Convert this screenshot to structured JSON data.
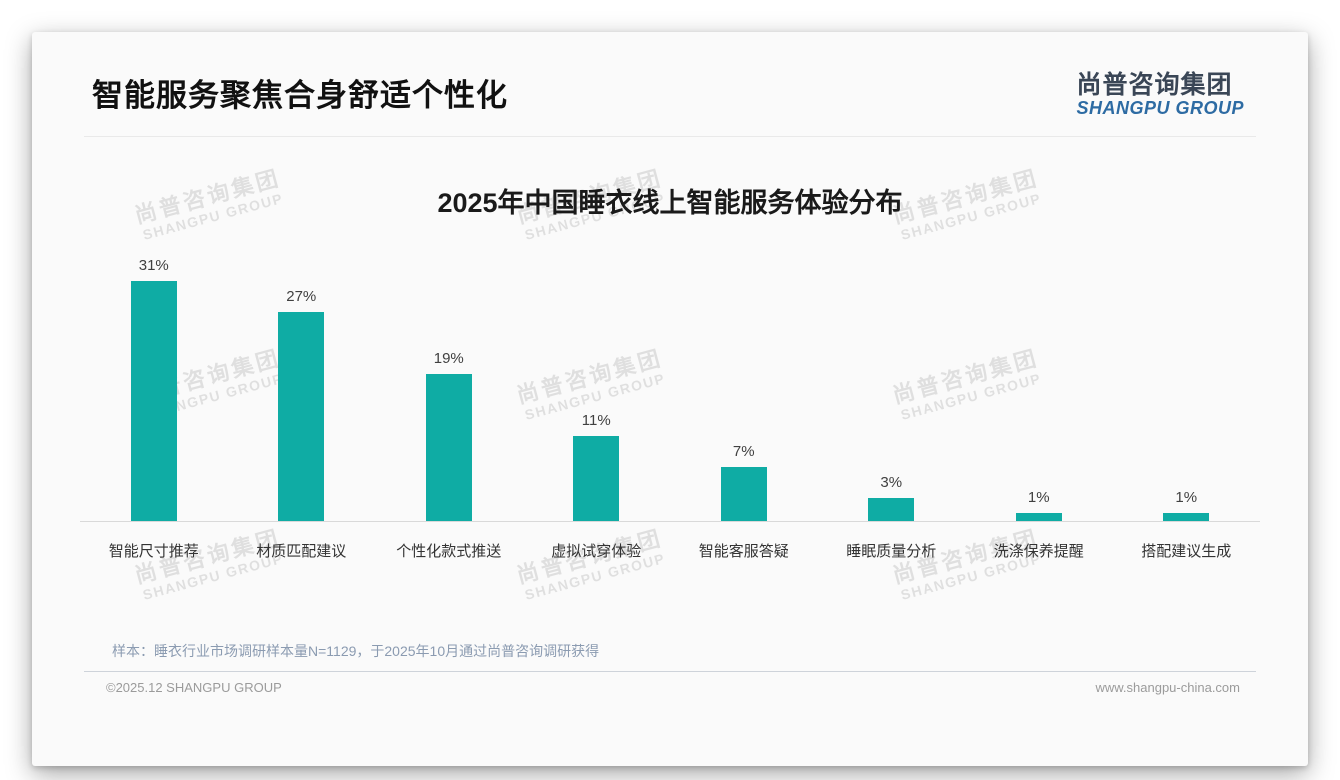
{
  "page": {
    "title": "智能服务聚焦合身舒适个性化",
    "logo": {
      "cn": "尚普咨询集团",
      "en": "SHANGPU GROUP"
    },
    "watermark": {
      "cn": "尚普咨询集团",
      "en": "SHANGPU GROUP"
    },
    "footnote": "样本：睡衣行业市场调研样本量N=1129，于2025年10月通过尚普咨询调研获得",
    "footer_left": "©2025.12 SHANGPU GROUP",
    "footer_right": "www.shangpu-china.com"
  },
  "chart_data": {
    "type": "bar",
    "title": "2025年中国睡衣线上智能服务体验分布",
    "categories": [
      "智能尺寸推荐",
      "材质匹配建议",
      "个性化款式推送",
      "虚拟试穿体验",
      "智能客服答疑",
      "睡眠质量分析",
      "洗涤保养提醒",
      "搭配建议生成"
    ],
    "values": [
      31,
      27,
      19,
      11,
      7,
      3,
      1,
      1
    ],
    "unit": "%",
    "value_labels": [
      "31%",
      "27%",
      "19%",
      "11%",
      "7%",
      "3%",
      "1%",
      "1%"
    ],
    "bar_color": "#0FACA4",
    "value_label_color": "#404040",
    "xlabel": "",
    "ylabel": "",
    "ylim": [
      0,
      31
    ],
    "grid": false,
    "legend": false
  }
}
